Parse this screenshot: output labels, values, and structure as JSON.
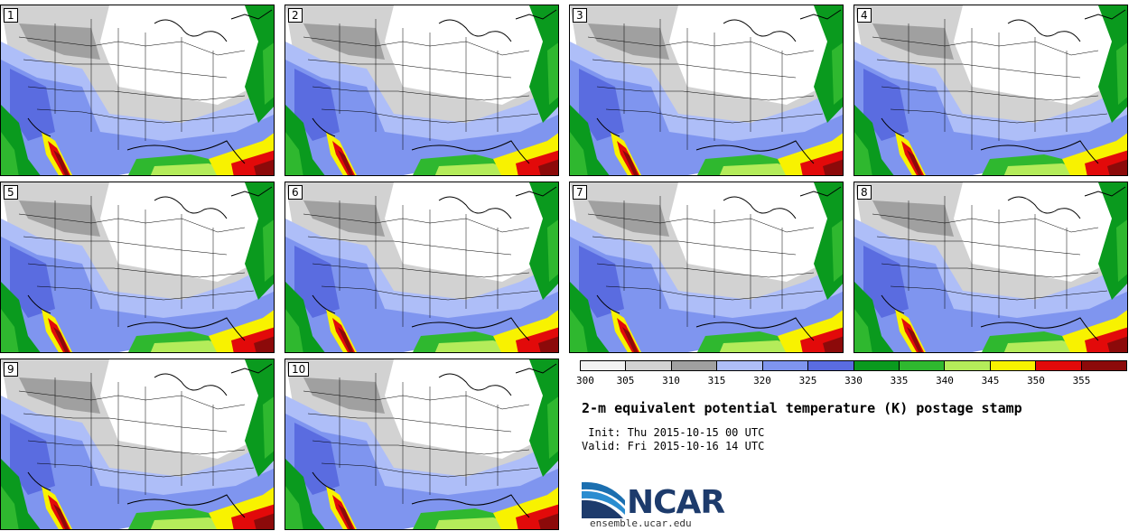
{
  "stamps": [
    {
      "label": "1"
    },
    {
      "label": "2"
    },
    {
      "label": "3"
    },
    {
      "label": "4"
    },
    {
      "label": "5"
    },
    {
      "label": "6"
    },
    {
      "label": "7"
    },
    {
      "label": "8"
    },
    {
      "label": "9"
    },
    {
      "label": "10"
    }
  ],
  "colorbar": {
    "colors": [
      "#f2f2f2",
      "#d2d2d2",
      "#a0a0a0",
      "#aebef8",
      "#7f95ef",
      "#5a6ce0",
      "#0a9a1e",
      "#2fb82f",
      "#b4ec5a",
      "#f8f200",
      "#e20a0a",
      "#8c0a0a"
    ],
    "ticks": [
      "300",
      "305",
      "310",
      "315",
      "320",
      "325",
      "330",
      "335",
      "340",
      "345",
      "350",
      "355"
    ]
  },
  "title": "2-m equivalent potential temperature (K) postage stamp",
  "init_label": " Init: Thu 2015-10-15 00 UTC",
  "valid_label": "Valid: Fri 2015-10-16 14 UTC",
  "logo": {
    "text": "NCAR",
    "url": "ensemble.ucar.edu"
  }
}
